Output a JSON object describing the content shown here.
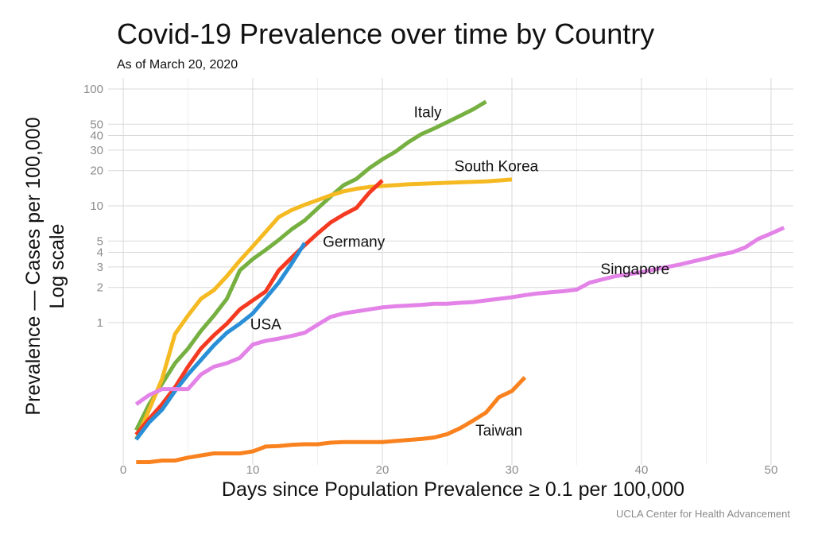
{
  "title": "Covid-19 Prevalence over time by Country",
  "subtitle": "As of March 20, 2020",
  "credit": "UCLA Center for Health Advancement",
  "chart_data": {
    "type": "line",
    "xlabel": "Days since Population Prevalence ≥ 0.1 per 100,000",
    "ylabel_lines": [
      "Prevalence — Cases per 100,000",
      "Log scale"
    ],
    "y_scale": "log",
    "xlim": [
      0,
      52
    ],
    "ylim": [
      0.06,
      130
    ],
    "x_ticks": [
      0,
      10,
      20,
      30,
      40,
      50
    ],
    "y_ticks": [
      1,
      2,
      3,
      4,
      5,
      10,
      20,
      30,
      40,
      50,
      100
    ],
    "grid": true,
    "legend": "direct labels on lines",
    "series": [
      {
        "name": "Italy",
        "color": "#76b041",
        "x": [
          1,
          2,
          3,
          4,
          5,
          6,
          7,
          8,
          9,
          10,
          11,
          12,
          13,
          14,
          15,
          16,
          17,
          18,
          19,
          20,
          21,
          22,
          23,
          24,
          25,
          26,
          27,
          28
        ],
        "y": [
          0.12,
          0.2,
          0.3,
          0.45,
          0.6,
          0.85,
          1.15,
          1.6,
          2.8,
          3.5,
          4.2,
          5.1,
          6.3,
          7.5,
          9.5,
          12,
          15,
          17,
          21,
          25,
          29,
          35,
          41,
          46,
          52,
          59,
          67,
          78
        ]
      },
      {
        "name": "South Korea",
        "color": "#f5b921",
        "x": [
          1,
          2,
          3,
          4,
          5,
          6,
          7,
          8,
          9,
          10,
          11,
          12,
          13,
          14,
          15,
          16,
          17,
          18,
          19,
          20,
          22,
          24,
          26,
          28,
          30
        ],
        "y": [
          0.1,
          0.18,
          0.33,
          0.8,
          1.15,
          1.6,
          1.9,
          2.5,
          3.4,
          4.5,
          6.0,
          8.0,
          9.2,
          10.2,
          11.2,
          12.3,
          13.3,
          14,
          14.5,
          14.8,
          15.3,
          15.6,
          15.9,
          16.2,
          16.8
        ]
      },
      {
        "name": "Germany",
        "color": "#f53a22",
        "x": [
          1,
          2,
          3,
          4,
          5,
          6,
          7,
          8,
          9,
          10,
          11,
          12,
          13,
          14,
          15,
          16,
          17,
          18,
          19,
          20
        ],
        "y": [
          0.11,
          0.15,
          0.2,
          0.28,
          0.42,
          0.6,
          0.78,
          0.98,
          1.3,
          1.55,
          1.85,
          2.8,
          3.6,
          4.6,
          5.8,
          7.2,
          8.4,
          9.6,
          13,
          16.5
        ]
      },
      {
        "name": "USA",
        "color": "#2a8fd7",
        "x": [
          1,
          2,
          3,
          4,
          5,
          6,
          7,
          8,
          9,
          10,
          11,
          12,
          13,
          14
        ],
        "y": [
          0.1,
          0.14,
          0.18,
          0.26,
          0.36,
          0.48,
          0.64,
          0.82,
          0.98,
          1.2,
          1.62,
          2.2,
          3.2,
          4.8
        ]
      },
      {
        "name": "Singapore",
        "color": "#e383e8",
        "x": [
          1,
          2,
          3,
          4,
          5,
          6,
          7,
          8,
          9,
          10,
          11,
          12,
          13,
          14,
          15,
          16,
          17,
          18,
          19,
          20,
          21,
          22,
          23,
          24,
          25,
          26,
          27,
          28,
          29,
          30,
          31,
          32,
          33,
          34,
          35,
          36,
          37,
          38,
          39,
          40,
          41,
          42,
          43,
          44,
          45,
          46,
          47,
          48,
          49,
          50,
          51
        ],
        "y": [
          0.2,
          0.24,
          0.27,
          0.27,
          0.27,
          0.36,
          0.42,
          0.45,
          0.5,
          0.65,
          0.7,
          0.73,
          0.77,
          0.82,
          0.96,
          1.12,
          1.2,
          1.25,
          1.3,
          1.35,
          1.38,
          1.4,
          1.42,
          1.45,
          1.45,
          1.48,
          1.5,
          1.55,
          1.6,
          1.65,
          1.72,
          1.78,
          1.82,
          1.86,
          1.92,
          2.2,
          2.35,
          2.5,
          2.6,
          2.7,
          2.85,
          3.0,
          3.15,
          3.35,
          3.55,
          3.8,
          4.0,
          4.4,
          5.2,
          5.8,
          6.5
        ]
      },
      {
        "name": "Taiwan",
        "color": "#f9821f",
        "x": [
          1,
          2,
          3,
          4,
          5,
          6,
          7,
          8,
          9,
          10,
          11,
          12,
          13,
          14,
          15,
          16,
          17,
          18,
          19,
          20,
          21,
          22,
          23,
          24,
          25,
          26,
          27,
          28,
          29,
          30,
          31
        ],
        "y": [
          0.064,
          0.064,
          0.066,
          0.066,
          0.07,
          0.073,
          0.076,
          0.076,
          0.076,
          0.079,
          0.087,
          0.088,
          0.09,
          0.091,
          0.091,
          0.094,
          0.095,
          0.095,
          0.095,
          0.095,
          0.097,
          0.099,
          0.101,
          0.104,
          0.111,
          0.125,
          0.145,
          0.17,
          0.23,
          0.26,
          0.34
        ]
      }
    ],
    "annotations": [
      {
        "text": "Italy",
        "series": "Italy",
        "x": 23.5,
        "y": 64
      },
      {
        "text": "South Korea",
        "series": "South Korea",
        "x": 28.8,
        "y": 22
      },
      {
        "text": "Germany",
        "series": "Germany",
        "x": 17.8,
        "y": 5.0
      },
      {
        "text": "USA",
        "series": "USA",
        "x": 11,
        "y": 0.98
      },
      {
        "text": "Singapore",
        "series": "Singapore",
        "x": 39.5,
        "y": 2.9
      },
      {
        "text": "Taiwan",
        "series": "Taiwan",
        "x": 29,
        "y": 0.121
      }
    ]
  }
}
